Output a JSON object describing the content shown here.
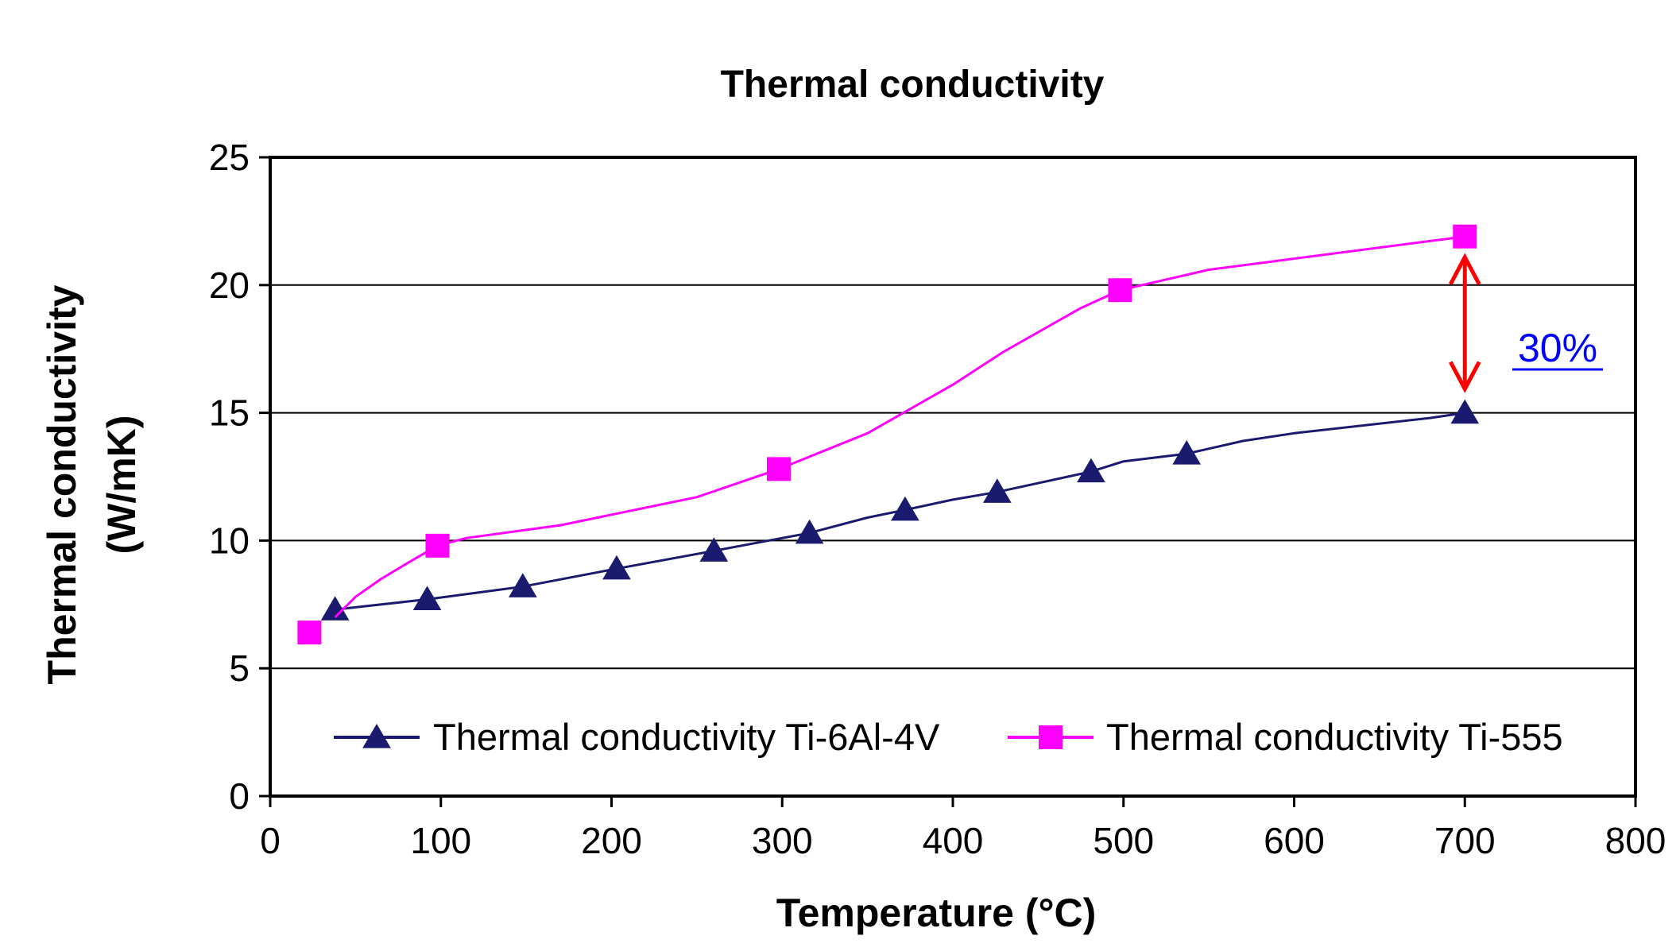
{
  "chart_data": {
    "type": "line",
    "title": "Thermal conductivity",
    "xlabel": "Temperature (°C)",
    "ylabel_line1": "Thermal conductivity",
    "ylabel_line2": "(W/mK)",
    "xlim": [
      0,
      800
    ],
    "ylim": [
      0,
      25
    ],
    "x_ticks": [
      0,
      100,
      200,
      300,
      400,
      500,
      600,
      700,
      800
    ],
    "y_ticks": [
      0,
      5,
      10,
      15,
      20,
      25
    ],
    "grid": "horizontal",
    "legend_position": "bottom",
    "series": [
      {
        "name": "Thermal conductivity Ti-6Al-4V",
        "color": "#1a1a6e",
        "marker": "triangle",
        "curve_x": [
          38,
          92,
          148,
          203,
          260,
          316,
          350,
          372,
          400,
          426,
          481,
          500,
          537,
          570,
          600,
          680,
          700
        ],
        "curve_y": [
          7.3,
          7.7,
          8.2,
          8.9,
          9.6,
          10.3,
          10.9,
          11.2,
          11.6,
          11.9,
          12.7,
          13.1,
          13.4,
          13.9,
          14.2,
          14.8,
          15.0
        ],
        "marker_x": [
          38,
          92,
          148,
          203,
          260,
          316,
          372,
          426,
          481,
          537,
          700
        ],
        "marker_y": [
          7.3,
          7.7,
          8.2,
          8.9,
          9.6,
          10.3,
          11.2,
          11.9,
          12.7,
          13.4,
          15.0
        ]
      },
      {
        "name": "Thermal conductivity Ti-555",
        "color": "#ff00ff",
        "marker": "square",
        "curve_x": [
          38,
          50,
          65,
          80,
          98,
          115,
          170,
          250,
          298,
          350,
          400,
          430,
          475,
          498,
          550,
          700
        ],
        "curve_y": [
          7.0,
          7.8,
          8.5,
          9.1,
          9.8,
          10.1,
          10.6,
          11.7,
          12.8,
          14.2,
          16.1,
          17.4,
          19.1,
          19.8,
          20.6,
          21.9
        ],
        "marker_x": [
          23,
          98,
          298,
          498,
          700
        ],
        "marker_y": [
          6.4,
          9.8,
          12.8,
          19.8,
          21.9
        ]
      }
    ],
    "annotation": {
      "text": "30%",
      "x": 700,
      "y_from": 15.0,
      "y_to": 21.9,
      "arrow_color": "#ff0000",
      "text_color": "#0000ff"
    }
  }
}
